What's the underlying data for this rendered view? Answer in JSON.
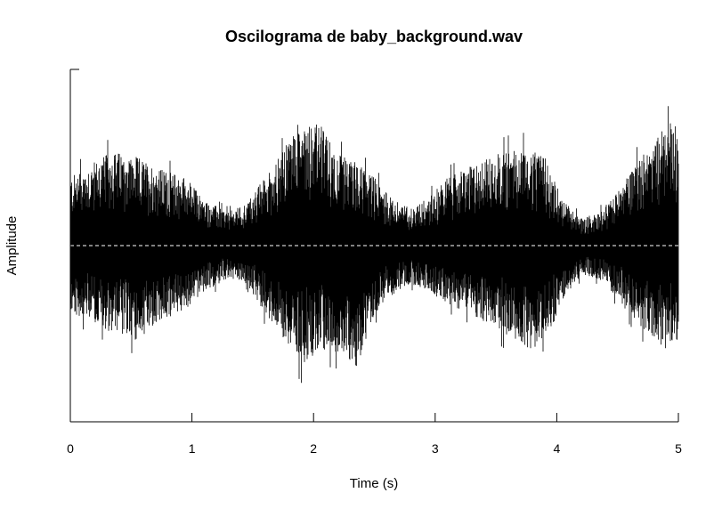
{
  "chart_data": {
    "type": "line",
    "title": "Oscilograma de baby_background.wav",
    "xlabel": "Time (s)",
    "ylabel": "Amplitude",
    "xlim": [
      0,
      5
    ],
    "x_ticks": [
      "0",
      "1",
      "2",
      "3",
      "4",
      "5"
    ],
    "ylim": [
      -1,
      1
    ],
    "grid": false,
    "series": [
      {
        "color": "#000000",
        "style": "solid",
        "envelope": {
          "x": [
            0,
            0.2,
            0.35,
            0.55,
            0.75,
            0.95,
            1.1,
            1.3,
            1.45,
            1.6,
            1.75,
            1.9,
            2.05,
            2.2,
            2.35,
            2.5,
            2.65,
            2.8,
            2.95,
            3.1,
            3.3,
            3.5,
            3.7,
            3.9,
            4.05,
            4.2,
            4.35,
            4.5,
            4.65,
            4.8,
            4.95,
            5.0
          ],
          "upper": [
            0.45,
            0.55,
            0.62,
            0.58,
            0.5,
            0.45,
            0.3,
            0.22,
            0.28,
            0.45,
            0.62,
            0.85,
            0.8,
            0.6,
            0.55,
            0.45,
            0.3,
            0.25,
            0.32,
            0.45,
            0.52,
            0.6,
            0.65,
            0.58,
            0.3,
            0.18,
            0.22,
            0.35,
            0.55,
            0.7,
            0.82,
            0.75
          ],
          "lower": [
            -0.45,
            -0.5,
            -0.58,
            -0.62,
            -0.5,
            -0.42,
            -0.3,
            -0.22,
            -0.25,
            -0.45,
            -0.6,
            -0.78,
            -0.68,
            -0.7,
            -0.82,
            -0.45,
            -0.32,
            -0.25,
            -0.3,
            -0.38,
            -0.45,
            -0.55,
            -0.65,
            -0.7,
            -0.35,
            -0.2,
            -0.22,
            -0.35,
            -0.5,
            -0.62,
            -0.7,
            -0.6
          ]
        }
      },
      {
        "color": "#ffffff",
        "style": "dashed",
        "y": 0
      }
    ]
  }
}
